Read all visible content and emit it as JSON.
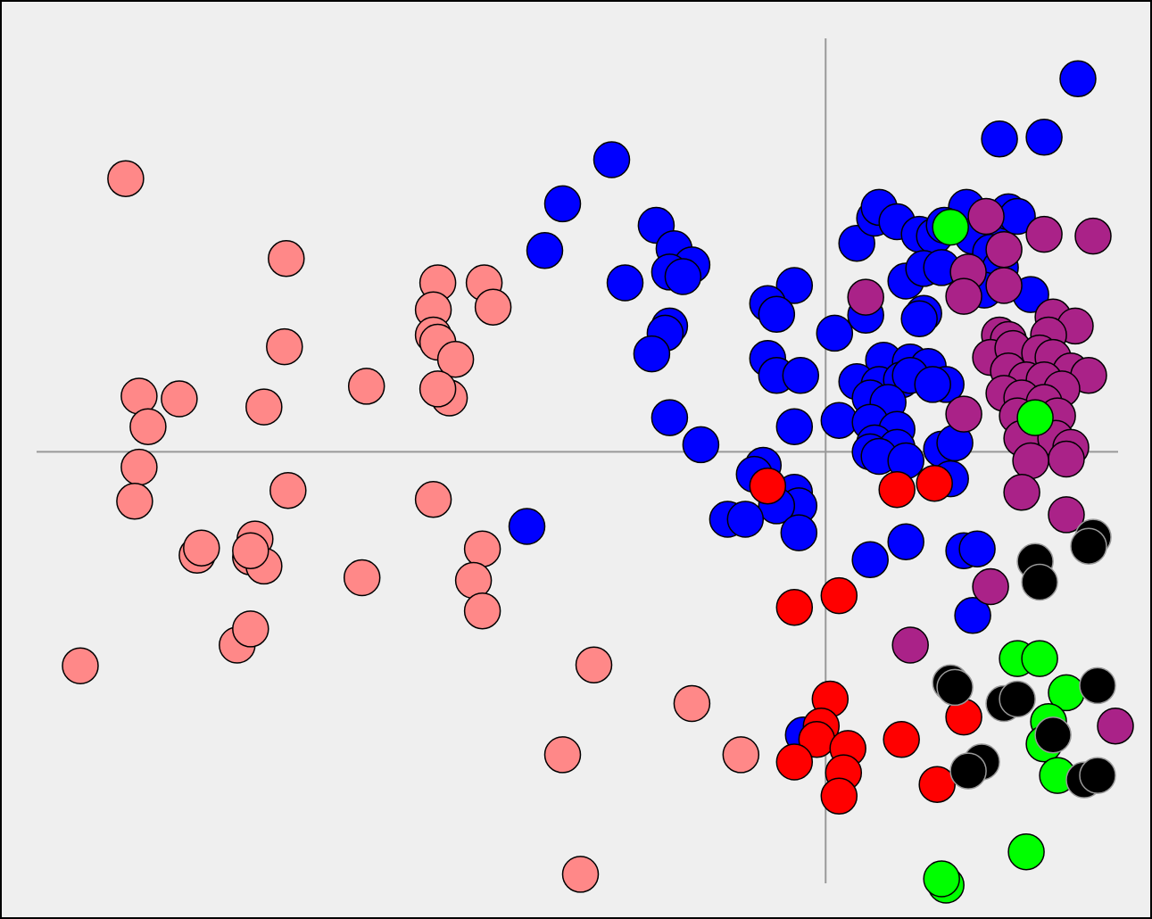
{
  "chart_data": {
    "type": "scatter",
    "title": "",
    "xlabel": "",
    "ylabel": "",
    "xlim": [
      -8.85,
      3.25
    ],
    "ylim": [
      -4.8,
      4.6
    ],
    "grid": false,
    "legend": "none",
    "background_color": "#efefef",
    "axis_line_color": "#999999",
    "zero_lines": {
      "x": 0,
      "y": 0
    },
    "series": [
      {
        "color": "#ff8888",
        "outline": "#000000",
        "points": [
          [
            -7.85,
            3.04
          ],
          [
            -6.05,
            2.15
          ],
          [
            -6.07,
            1.17
          ],
          [
            -7.7,
            0.62
          ],
          [
            -7.25,
            0.59
          ],
          [
            -6.3,
            0.5
          ],
          [
            -7.6,
            0.28
          ],
          [
            -5.15,
            0.73
          ],
          [
            -4.35,
            1.88
          ],
          [
            -3.83,
            1.88
          ],
          [
            -4.4,
            1.58
          ],
          [
            -3.73,
            1.61
          ],
          [
            -4.4,
            1.3
          ],
          [
            -4.35,
            1.22
          ],
          [
            -4.15,
            1.03
          ],
          [
            -4.22,
            0.6
          ],
          [
            -4.35,
            0.7
          ],
          [
            -7.7,
            -0.17
          ],
          [
            -7.75,
            -0.55
          ],
          [
            -6.03,
            -0.43
          ],
          [
            -4.4,
            -0.53
          ],
          [
            -7.05,
            -1.15
          ],
          [
            -7.0,
            -1.07
          ],
          [
            -6.4,
            -0.97
          ],
          [
            -6.45,
            -1.17
          ],
          [
            -6.3,
            -1.27
          ],
          [
            -6.45,
            -1.1
          ],
          [
            -5.2,
            -1.4
          ],
          [
            -3.85,
            -1.08
          ],
          [
            -3.95,
            -1.43
          ],
          [
            -3.85,
            -1.77
          ],
          [
            -6.6,
            -2.15
          ],
          [
            -6.45,
            -1.97
          ],
          [
            -8.36,
            -2.38
          ],
          [
            -2.6,
            -2.37
          ],
          [
            -1.5,
            -2.8
          ],
          [
            -2.95,
            -3.37
          ],
          [
            -0.95,
            -3.37
          ],
          [
            -2.75,
            -4.7
          ]
        ]
      },
      {
        "color": "#0000ff",
        "outline": "#000000",
        "points": [
          [
            2.83,
            4.15
          ],
          [
            1.95,
            3.48
          ],
          [
            2.45,
            3.5
          ],
          [
            -2.4,
            3.25
          ],
          [
            -2.95,
            2.76
          ],
          [
            -1.9,
            2.52
          ],
          [
            -3.15,
            2.24
          ],
          [
            -1.7,
            2.26
          ],
          [
            -1.5,
            2.08
          ],
          [
            -1.75,
            2.0
          ],
          [
            -1.6,
            1.95
          ],
          [
            -2.25,
            1.88
          ],
          [
            -0.35,
            1.85
          ],
          [
            0.35,
            2.32
          ],
          [
            0.55,
            2.6
          ],
          [
            0.6,
            2.72
          ],
          [
            1.58,
            2.72
          ],
          [
            1.9,
            2.59
          ],
          [
            2.05,
            2.67
          ],
          [
            2.15,
            2.62
          ],
          [
            0.8,
            2.56
          ],
          [
            1.05,
            2.42
          ],
          [
            1.22,
            2.4
          ],
          [
            1.33,
            2.52
          ],
          [
            1.65,
            2.4
          ],
          [
            1.85,
            2.22
          ],
          [
            1.96,
            2.05
          ],
          [
            2.3,
            1.75
          ],
          [
            0.9,
            1.9
          ],
          [
            1.1,
            2.04
          ],
          [
            1.3,
            2.05
          ],
          [
            1.78,
            1.8
          ],
          [
            1.1,
            1.54
          ],
          [
            1.05,
            1.48
          ],
          [
            -0.65,
            1.65
          ],
          [
            -0.55,
            1.53
          ],
          [
            -1.75,
            1.4
          ],
          [
            -1.8,
            1.32
          ],
          [
            -1.95,
            1.09
          ],
          [
            -0.65,
            1.04
          ],
          [
            -0.55,
            0.85
          ],
          [
            -0.28,
            0.85
          ],
          [
            0.1,
            1.32
          ],
          [
            0.45,
            1.52
          ],
          [
            0.65,
            1.02
          ],
          [
            0.95,
            1.0
          ],
          [
            1.15,
            0.95
          ],
          [
            1.35,
            0.75
          ],
          [
            0.35,
            0.78
          ],
          [
            0.6,
            0.75
          ],
          [
            0.85,
            0.8
          ],
          [
            0.95,
            0.85
          ],
          [
            1.2,
            0.75
          ],
          [
            0.5,
            0.6
          ],
          [
            0.7,
            0.55
          ],
          [
            -0.35,
            0.28
          ],
          [
            -1.75,
            0.38
          ],
          [
            -1.4,
            0.08
          ],
          [
            0.15,
            0.35
          ],
          [
            0.5,
            0.33
          ],
          [
            0.8,
            0.25
          ],
          [
            0.55,
            0.1
          ],
          [
            0.8,
            0.05
          ],
          [
            1.3,
            0.03
          ],
          [
            1.45,
            0.1
          ],
          [
            0.5,
            0.0
          ],
          [
            0.6,
            -0.05
          ],
          [
            0.9,
            -0.1
          ],
          [
            1.4,
            -0.3
          ],
          [
            -0.7,
            -0.15
          ],
          [
            -0.8,
            -0.25
          ],
          [
            -0.35,
            -0.45
          ],
          [
            -0.3,
            -0.6
          ],
          [
            -0.55,
            -0.6
          ],
          [
            -1.1,
            -0.75
          ],
          [
            -0.9,
            -0.75
          ],
          [
            -3.35,
            -0.83
          ],
          [
            -0.3,
            -0.9
          ],
          [
            0.5,
            -1.2
          ],
          [
            0.9,
            -1.0
          ],
          [
            1.55,
            -1.1
          ],
          [
            1.7,
            -1.08
          ],
          [
            1.65,
            -1.82
          ],
          [
            -0.25,
            -3.15
          ]
        ]
      },
      {
        "color": "#ff0000",
        "outline": "#000000",
        "points": [
          [
            -0.65,
            -0.38
          ],
          [
            0.8,
            -0.42
          ],
          [
            1.22,
            -0.35
          ],
          [
            -0.35,
            -1.73
          ],
          [
            0.15,
            -1.6
          ],
          [
            0.05,
            -2.75
          ],
          [
            -0.05,
            -3.05
          ],
          [
            -0.1,
            -3.2
          ],
          [
            0.25,
            -3.3
          ],
          [
            0.2,
            -3.57
          ],
          [
            -0.35,
            -3.45
          ],
          [
            0.85,
            -3.2
          ],
          [
            1.55,
            -2.95
          ],
          [
            1.25,
            -3.7
          ],
          [
            0.15,
            -3.83
          ]
        ]
      },
      {
        "color": "#aa2288",
        "outline": "#000000",
        "points": [
          [
            1.8,
            2.62
          ],
          [
            2.45,
            2.42
          ],
          [
            3.0,
            2.4
          ],
          [
            2.0,
            2.25
          ],
          [
            1.6,
            2.0
          ],
          [
            1.55,
            1.73
          ],
          [
            2.0,
            1.85
          ],
          [
            0.45,
            1.72
          ],
          [
            2.55,
            1.5
          ],
          [
            2.8,
            1.4
          ],
          [
            2.5,
            1.3
          ],
          [
            1.95,
            1.3
          ],
          [
            2.05,
            1.25
          ],
          [
            1.85,
            1.05
          ],
          [
            2.1,
            1.15
          ],
          [
            2.4,
            1.1
          ],
          [
            2.55,
            1.05
          ],
          [
            2.75,
            0.9
          ],
          [
            2.95,
            0.85
          ],
          [
            2.05,
            0.9
          ],
          [
            2.25,
            0.8
          ],
          [
            2.45,
            0.8
          ],
          [
            2.65,
            0.7
          ],
          [
            2.0,
            0.65
          ],
          [
            2.2,
            0.6
          ],
          [
            2.45,
            0.55
          ],
          [
            2.6,
            0.4
          ],
          [
            1.55,
            0.42
          ],
          [
            2.15,
            0.4
          ],
          [
            2.2,
            0.15
          ],
          [
            2.58,
            0.15
          ],
          [
            2.75,
            0.05
          ],
          [
            2.7,
            -0.08
          ],
          [
            2.3,
            -0.1
          ],
          [
            2.2,
            -0.45
          ],
          [
            2.7,
            -0.7
          ],
          [
            1.85,
            -1.5
          ],
          [
            0.95,
            -2.15
          ],
          [
            3.25,
            -3.05
          ]
        ]
      },
      {
        "color": "#00ff00",
        "outline": "#000000",
        "points": [
          [
            1.4,
            2.5
          ],
          [
            2.35,
            0.38
          ],
          [
            2.15,
            -2.3
          ],
          [
            2.4,
            -2.3
          ],
          [
            2.7,
            -2.68
          ],
          [
            2.5,
            -3.0
          ],
          [
            2.45,
            -3.25
          ],
          [
            2.6,
            -3.6
          ],
          [
            2.25,
            -4.45
          ],
          [
            1.35,
            -4.82
          ],
          [
            1.3,
            -4.75
          ]
        ]
      },
      {
        "color": "#000000",
        "outline": "#999999",
        "points": [
          [
            3.0,
            -0.95
          ],
          [
            2.95,
            -1.05
          ],
          [
            2.35,
            -1.22
          ],
          [
            2.4,
            -1.45
          ],
          [
            1.4,
            -2.57
          ],
          [
            1.45,
            -2.62
          ],
          [
            2.0,
            -2.8
          ],
          [
            2.15,
            -2.75
          ],
          [
            3.05,
            -2.6
          ],
          [
            2.55,
            -3.15
          ],
          [
            1.75,
            -3.45
          ],
          [
            1.6,
            -3.55
          ],
          [
            2.9,
            -3.65
          ],
          [
            3.05,
            -3.6
          ]
        ]
      }
    ]
  }
}
